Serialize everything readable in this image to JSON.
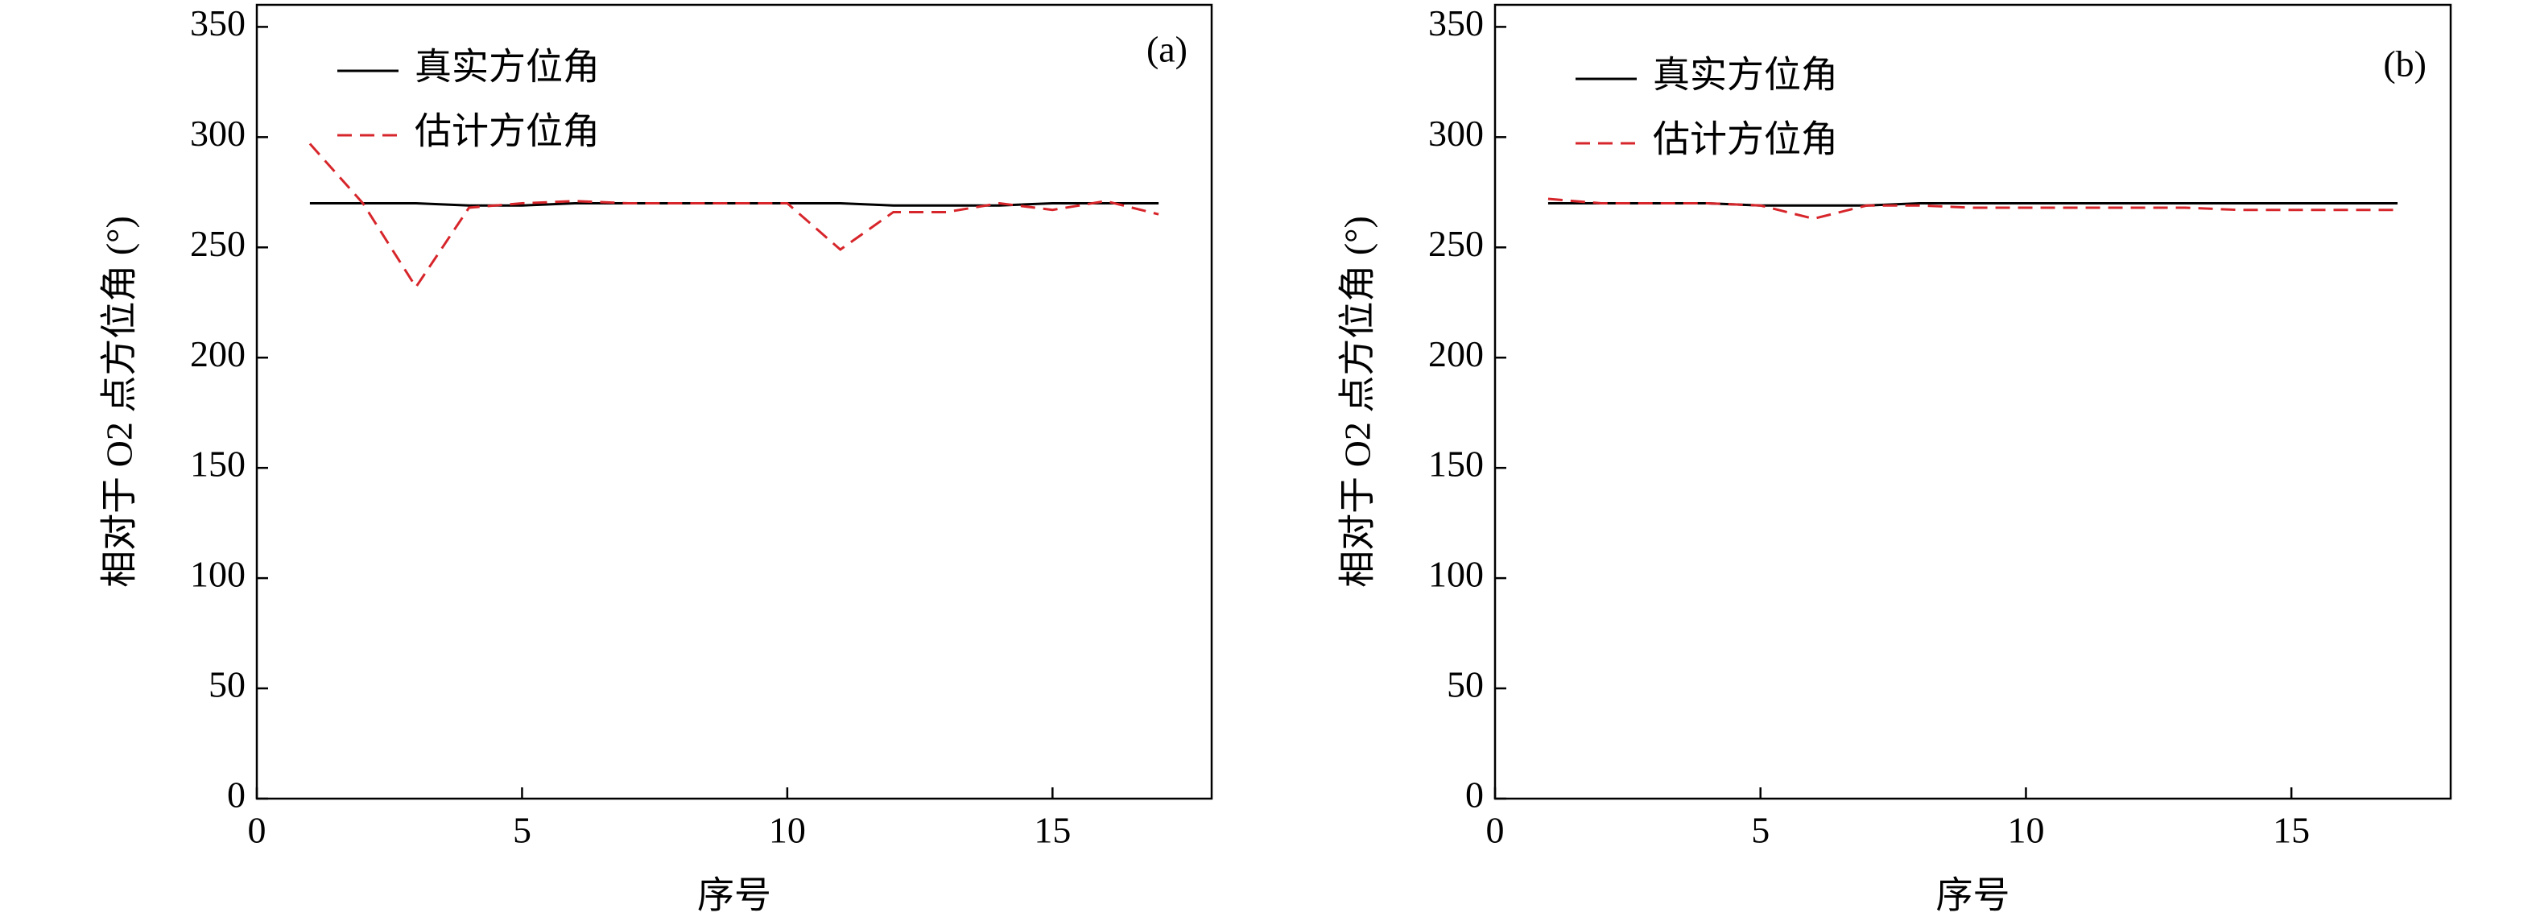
{
  "chart_data": [
    {
      "type": "line",
      "panel_label": "(a)",
      "x_label": "序号",
      "y_label": "相对于 O2 点方位角 (°)",
      "x": [
        1,
        2,
        3,
        4,
        5,
        6,
        7,
        8,
        9,
        10,
        11,
        12,
        13,
        14,
        15,
        16,
        17
      ],
      "series": [
        {
          "name": "真实方位角",
          "color": "#000000",
          "dash": "solid",
          "values": [
            270,
            270,
            270,
            269,
            269,
            270,
            270,
            270,
            270,
            270,
            270,
            269,
            269,
            269,
            270,
            270,
            270
          ]
        },
        {
          "name": "估计方位角",
          "color": "#d7262b",
          "dash": "dashed",
          "values": [
            297,
            270,
            232,
            268,
            270,
            271,
            270,
            270,
            270,
            270,
            249,
            266,
            266,
            270,
            267,
            271,
            265
          ]
        }
      ],
      "xlim": [
        0,
        18
      ],
      "ylim": [
        0,
        360
      ],
      "xticks": [
        0,
        5,
        10,
        15
      ],
      "yticks": [
        0,
        50,
        100,
        150,
        200,
        250,
        300,
        350
      ],
      "legend": "upper left"
    },
    {
      "type": "line",
      "panel_label": "(b)",
      "x_label": "序号",
      "y_label": "相对于 O2 点方位角 (°)",
      "x": [
        1,
        2,
        3,
        4,
        5,
        6,
        7,
        8,
        9,
        10,
        11,
        12,
        13,
        14,
        15,
        16,
        17
      ],
      "series": [
        {
          "name": "真实方位角",
          "color": "#000000",
          "dash": "solid",
          "values": [
            270,
            270,
            270,
            270,
            269,
            269,
            269,
            270,
            270,
            270,
            270,
            270,
            270,
            270,
            270,
            270,
            270
          ]
        },
        {
          "name": "估计方位角",
          "color": "#d7262b",
          "dash": "dashed",
          "values": [
            272,
            270,
            270,
            270,
            269,
            263,
            269,
            269,
            268,
            268,
            268,
            268,
            268,
            267,
            267,
            267,
            267
          ]
        }
      ],
      "xlim": [
        0,
        18
      ],
      "ylim": [
        0,
        360
      ],
      "xticks": [
        0,
        5,
        10,
        15
      ],
      "yticks": [
        0,
        50,
        100,
        150,
        200,
        250,
        300,
        350
      ],
      "legend": "upper left"
    }
  ]
}
